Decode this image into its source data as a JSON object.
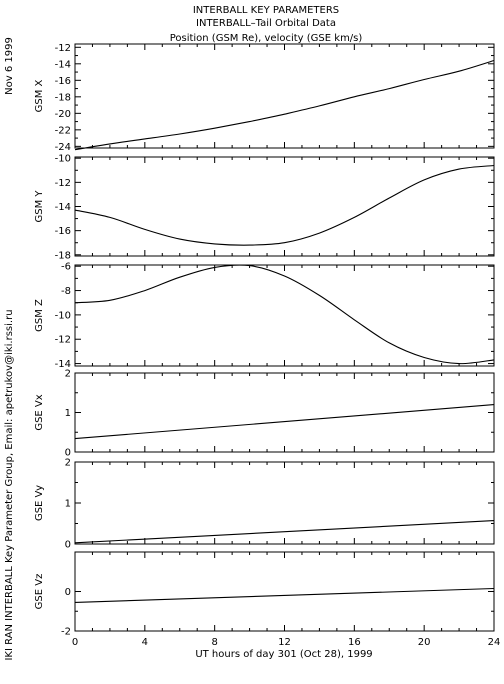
{
  "side": {
    "date": "Nov  6 1999",
    "credit": "IKI RAN INTERBALL Key Parameter Group, Email: apetrukov@iki.rssi.ru"
  },
  "titles": {
    "line1": "INTERBALL KEY PARAMETERS",
    "line2": "INTERBALL–Tail Orbital Data",
    "line3": "Position (GSM Re), velocity (GSE km/s)"
  },
  "xaxis": {
    "label": "UT hours of day 301 (Oct 28), 1999",
    "range": [
      0,
      24
    ],
    "ticks": [
      0,
      4,
      8,
      12,
      16,
      20,
      24
    ]
  },
  "chart_data": [
    {
      "type": "line",
      "ylabel": "GSM X",
      "ylim": [
        -24.2,
        -11.6
      ],
      "yticks": [
        -12,
        -14,
        -16,
        -18,
        -20,
        -22,
        -24
      ],
      "x": [
        0,
        2,
        4,
        6,
        8,
        10,
        12,
        14,
        16,
        18,
        20,
        22,
        24
      ],
      "y": [
        -24.4,
        -23.7,
        -23.1,
        -22.5,
        -21.8,
        -21.0,
        -20.1,
        -19.1,
        -18.0,
        -17.0,
        -15.9,
        -14.9,
        -13.6
      ]
    },
    {
      "type": "line",
      "ylabel": "GSM Y",
      "ylim": [
        -18.1,
        -9.9
      ],
      "yticks": [
        -10,
        -12,
        -14,
        -16,
        -18
      ],
      "x": [
        0,
        2,
        4,
        6,
        8,
        10,
        12,
        14,
        16,
        18,
        20,
        22,
        24
      ],
      "y": [
        -14.3,
        -14.9,
        -15.9,
        -16.7,
        -17.1,
        -17.2,
        -17.0,
        -16.2,
        -14.9,
        -13.3,
        -11.8,
        -10.9,
        -10.6
      ]
    },
    {
      "type": "line",
      "ylabel": "GSM Z",
      "ylim": [
        -14.2,
        -5.9
      ],
      "yticks": [
        -6,
        -8,
        -10,
        -12,
        -14
      ],
      "x": [
        0,
        2,
        4,
        6,
        8,
        10,
        12,
        14,
        16,
        18,
        20,
        22,
        24
      ],
      "y": [
        -9.0,
        -8.8,
        -8.0,
        -6.9,
        -6.1,
        -5.95,
        -6.8,
        -8.4,
        -10.4,
        -12.3,
        -13.5,
        -14.0,
        -13.7
      ]
    },
    {
      "type": "line",
      "ylabel": "GSE Vx",
      "ylim": [
        0,
        2
      ],
      "yticks": [
        0,
        1,
        2
      ],
      "x": [
        0,
        24
      ],
      "y": [
        0.34,
        1.2
      ]
    },
    {
      "type": "line",
      "ylabel": "GSE Vy",
      "ylim": [
        0,
        2
      ],
      "yticks": [
        0,
        1,
        2
      ],
      "x": [
        0,
        24
      ],
      "y": [
        0.03,
        0.57
      ]
    },
    {
      "type": "line",
      "ylabel": "GSE Vz",
      "ylim": [
        -2,
        2
      ],
      "yticks": [
        0,
        -2
      ],
      "x": [
        0,
        24
      ],
      "y": [
        -0.55,
        0.15
      ]
    }
  ]
}
